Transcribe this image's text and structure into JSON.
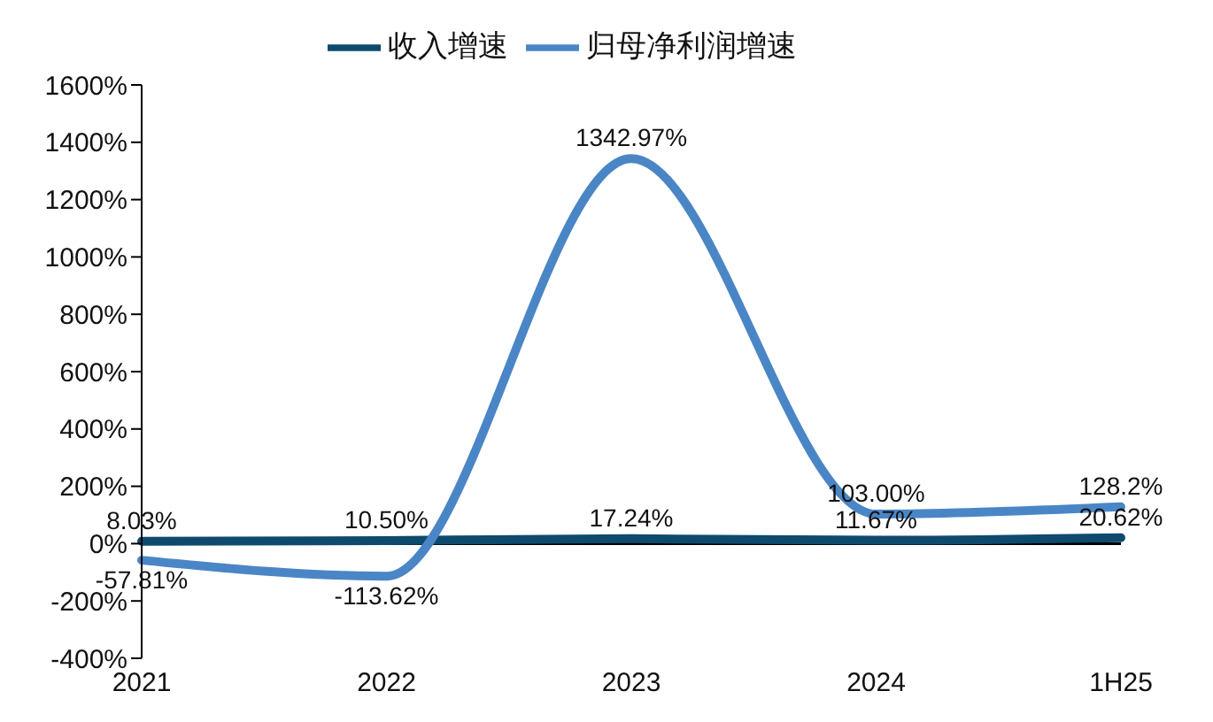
{
  "chart_data": {
    "type": "line",
    "categories": [
      "2021",
      "2022",
      "2023",
      "2024",
      "1H25"
    ],
    "series": [
      {
        "name": "收入增速",
        "color": "#0e4a6e",
        "values": [
          8.03,
          10.5,
          17.24,
          11.67,
          20.62
        ],
        "value_labels": [
          "8.03%",
          "10.50%",
          "17.24%",
          "11.67%",
          "20.62%"
        ]
      },
      {
        "name": "归母净利润增速",
        "color": "#4a86c6",
        "values": [
          -57.81,
          -113.62,
          1342.97,
          103,
          128.2
        ],
        "value_labels": [
          "-57.81%",
          "-113.62%",
          "1342.97%",
          "103.00%",
          "128.2%"
        ]
      }
    ],
    "ylim": [
      -400,
      1600
    ],
    "yticks": [
      {
        "value": -400,
        "label": "-400%"
      },
      {
        "value": -200,
        "label": "-200%"
      },
      {
        "value": 0,
        "label": "0%"
      },
      {
        "value": 200,
        "label": "200%"
      },
      {
        "value": 400,
        "label": "400%"
      },
      {
        "value": 600,
        "label": "600%"
      },
      {
        "value": 800,
        "label": "800%"
      },
      {
        "value": 1000,
        "label": "1000%"
      },
      {
        "value": 1200,
        "label": "1200%"
      },
      {
        "value": 1400,
        "label": "1400%"
      },
      {
        "value": 1600,
        "label": "1600%"
      }
    ],
    "ref_lines": [
      {
        "axis": "y",
        "value": 0,
        "color": "#000000"
      }
    ],
    "legend": "top",
    "marker": "none",
    "line_style": "solid"
  }
}
